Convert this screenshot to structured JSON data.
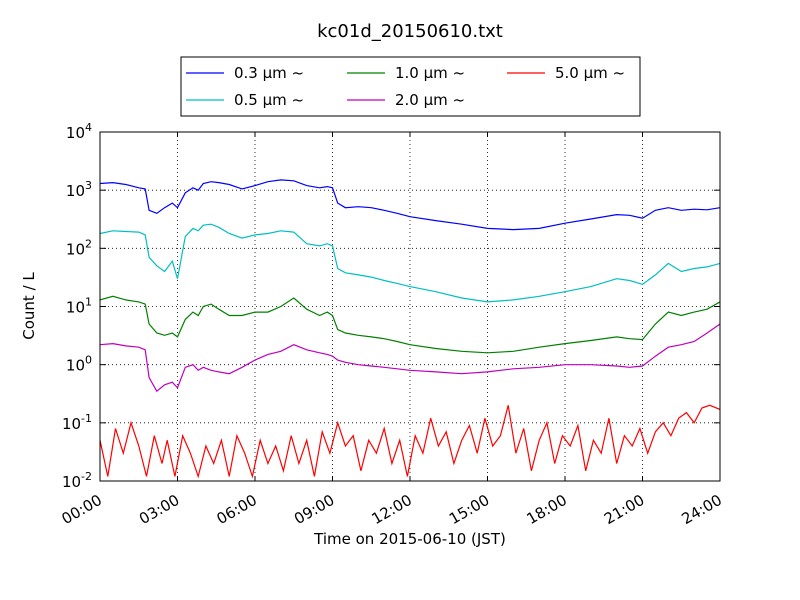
{
  "chart_data": {
    "type": "line",
    "title": "kc01d_20150610.txt",
    "xlabel": "Time on 2015-06-10 (JST)",
    "ylabel": "Count / L",
    "x_range_hours": [
      0,
      24
    ],
    "y_scale": "log",
    "ylim": [
      0.01,
      10000
    ],
    "grid": "dotted",
    "legend_position": "top-center",
    "x_tick_labels": [
      "00:00",
      "03:00",
      "06:00",
      "09:00",
      "12:00",
      "15:00",
      "18:00",
      "21:00",
      "24:00"
    ],
    "y_ticks": [
      {
        "base": "10",
        "exp": "-2",
        "value": 0.01
      },
      {
        "base": "10",
        "exp": "-1",
        "value": 0.1
      },
      {
        "base": "10",
        "exp": "0",
        "value": 1
      },
      {
        "base": "10",
        "exp": "1",
        "value": 10
      },
      {
        "base": "10",
        "exp": "2",
        "value": 100
      },
      {
        "base": "10",
        "exp": "3",
        "value": 1000
      },
      {
        "base": "10",
        "exp": "4",
        "value": 10000
      }
    ],
    "series": [
      {
        "name": "0.3 μm ~",
        "color": "#0000ff",
        "x": [
          0,
          0.5,
          1,
          1.5,
          1.75,
          1.9,
          2.2,
          2.5,
          2.8,
          3.0,
          3.3,
          3.6,
          3.8,
          4.0,
          4.3,
          4.6,
          5.0,
          5.5,
          6.0,
          6.5,
          7.0,
          7.5,
          8.0,
          8.5,
          8.8,
          9.0,
          9.2,
          9.5,
          10.0,
          10.5,
          11.0,
          11.5,
          12.0,
          13.0,
          14.0,
          15.0,
          16.0,
          17.0,
          18.0,
          19.0,
          20.0,
          20.5,
          21.0,
          21.5,
          22.0,
          22.5,
          23.0,
          23.5,
          24.0
        ],
        "values": [
          1300,
          1350,
          1250,
          1100,
          1050,
          450,
          400,
          500,
          600,
          500,
          900,
          1100,
          1000,
          1300,
          1400,
          1350,
          1250,
          1050,
          1200,
          1400,
          1500,
          1450,
          1200,
          1100,
          1150,
          1100,
          600,
          500,
          520,
          500,
          450,
          400,
          350,
          300,
          260,
          220,
          210,
          220,
          270,
          320,
          380,
          370,
          330,
          450,
          500,
          450,
          470,
          460,
          500
        ]
      },
      {
        "name": "0.5 μm ~",
        "color": "#00bfbf",
        "x": [
          0,
          0.5,
          1,
          1.5,
          1.75,
          1.9,
          2.2,
          2.5,
          2.8,
          3.0,
          3.3,
          3.6,
          3.8,
          4.0,
          4.3,
          4.6,
          5.0,
          5.5,
          6.0,
          6.5,
          7.0,
          7.5,
          8.0,
          8.5,
          8.8,
          9.0,
          9.2,
          9.5,
          10.0,
          10.5,
          11.0,
          11.5,
          12.0,
          13.0,
          14.0,
          15.0,
          16.0,
          17.0,
          18.0,
          19.0,
          20.0,
          20.5,
          21.0,
          21.5,
          22.0,
          22.5,
          23.0,
          23.5,
          24.0
        ],
        "values": [
          180,
          200,
          195,
          190,
          170,
          70,
          50,
          40,
          60,
          30,
          160,
          220,
          200,
          250,
          260,
          230,
          180,
          150,
          170,
          180,
          200,
          190,
          120,
          110,
          120,
          110,
          45,
          38,
          35,
          32,
          28,
          25,
          22,
          18,
          14,
          12,
          13,
          15,
          18,
          22,
          30,
          28,
          24,
          35,
          55,
          40,
          45,
          48,
          55
        ]
      },
      {
        "name": "1.0 μm ~",
        "color": "#008000",
        "x": [
          0,
          0.5,
          1,
          1.5,
          1.75,
          1.9,
          2.2,
          2.5,
          2.8,
          3.0,
          3.3,
          3.6,
          3.8,
          4.0,
          4.3,
          4.6,
          5.0,
          5.5,
          6.0,
          6.5,
          7.0,
          7.5,
          8.0,
          8.5,
          8.8,
          9.0,
          9.2,
          9.5,
          10.0,
          10.5,
          11.0,
          11.5,
          12.0,
          13.0,
          14.0,
          15.0,
          16.0,
          17.0,
          18.0,
          19.0,
          20.0,
          20.5,
          21.0,
          21.5,
          22.0,
          22.5,
          23.0,
          23.5,
          24.0
        ],
        "values": [
          13,
          15,
          13,
          12,
          11,
          5,
          3.5,
          3.2,
          3.5,
          3.0,
          6,
          8,
          7,
          10,
          11,
          9,
          7,
          7,
          8,
          8,
          10,
          14,
          9,
          7,
          8,
          7,
          4,
          3.5,
          3.2,
          3.0,
          2.8,
          2.5,
          2.2,
          1.9,
          1.7,
          1.6,
          1.7,
          2.0,
          2.3,
          2.6,
          3.0,
          2.8,
          2.7,
          5,
          8,
          7,
          8,
          9,
          12
        ]
      },
      {
        "name": "2.0 μm ~",
        "color": "#bf00bf",
        "x": [
          0,
          0.5,
          1,
          1.5,
          1.75,
          1.9,
          2.2,
          2.5,
          2.8,
          3.0,
          3.3,
          3.6,
          3.8,
          4.0,
          4.3,
          4.6,
          5.0,
          5.5,
          6.0,
          6.5,
          7.0,
          7.5,
          8.0,
          8.5,
          8.8,
          9.0,
          9.2,
          9.5,
          10.0,
          10.5,
          11.0,
          11.5,
          12.0,
          13.0,
          14.0,
          15.0,
          16.0,
          17.0,
          18.0,
          19.0,
          20.0,
          20.5,
          21.0,
          21.5,
          22.0,
          22.5,
          23.0,
          23.5,
          24.0
        ],
        "values": [
          2.2,
          2.3,
          2.1,
          2.0,
          1.8,
          0.6,
          0.35,
          0.45,
          0.5,
          0.4,
          0.9,
          1.0,
          0.8,
          0.9,
          0.8,
          0.75,
          0.7,
          0.9,
          1.2,
          1.5,
          1.7,
          2.2,
          1.8,
          1.6,
          1.5,
          1.4,
          1.2,
          1.1,
          1.0,
          0.95,
          0.9,
          0.85,
          0.8,
          0.75,
          0.7,
          0.75,
          0.85,
          0.9,
          1.0,
          1.0,
          0.95,
          0.9,
          0.95,
          1.4,
          2.0,
          2.2,
          2.5,
          3.5,
          5.0
        ]
      },
      {
        "name": "5.0 μm ~",
        "color": "#ff0000",
        "x": [
          0,
          0.3,
          0.6,
          0.9,
          1.2,
          1.5,
          1.8,
          2.1,
          2.4,
          2.6,
          2.9,
          3.2,
          3.5,
          3.8,
          4.1,
          4.4,
          4.7,
          5.0,
          5.3,
          5.6,
          5.9,
          6.2,
          6.5,
          6.8,
          7.1,
          7.4,
          7.7,
          8.0,
          8.3,
          8.6,
          8.9,
          9.2,
          9.5,
          9.8,
          10.1,
          10.4,
          10.7,
          11.0,
          11.3,
          11.6,
          11.9,
          12.2,
          12.5,
          12.8,
          13.1,
          13.4,
          13.7,
          14.0,
          14.3,
          14.6,
          14.9,
          15.2,
          15.5,
          15.8,
          16.1,
          16.4,
          16.7,
          17.0,
          17.3,
          17.6,
          17.9,
          18.2,
          18.5,
          18.8,
          19.1,
          19.4,
          19.7,
          20.0,
          20.3,
          20.6,
          20.9,
          21.2,
          21.5,
          21.8,
          22.1,
          22.4,
          22.7,
          23.0,
          23.3,
          23.6,
          24.0
        ],
        "values": [
          0.05,
          0.012,
          0.08,
          0.03,
          0.1,
          0.04,
          0.012,
          0.06,
          0.02,
          0.05,
          0.012,
          0.06,
          0.03,
          0.012,
          0.04,
          0.02,
          0.05,
          0.012,
          0.06,
          0.03,
          0.012,
          0.05,
          0.02,
          0.04,
          0.015,
          0.06,
          0.02,
          0.05,
          0.012,
          0.07,
          0.03,
          0.1,
          0.04,
          0.06,
          0.015,
          0.05,
          0.03,
          0.08,
          0.02,
          0.05,
          0.012,
          0.06,
          0.03,
          0.12,
          0.04,
          0.07,
          0.02,
          0.05,
          0.09,
          0.03,
          0.12,
          0.04,
          0.06,
          0.2,
          0.03,
          0.08,
          0.015,
          0.05,
          0.1,
          0.02,
          0.06,
          0.04,
          0.09,
          0.015,
          0.05,
          0.03,
          0.12,
          0.02,
          0.06,
          0.04,
          0.08,
          0.03,
          0.07,
          0.1,
          0.06,
          0.12,
          0.15,
          0.1,
          0.18,
          0.2,
          0.17
        ]
      }
    ]
  }
}
